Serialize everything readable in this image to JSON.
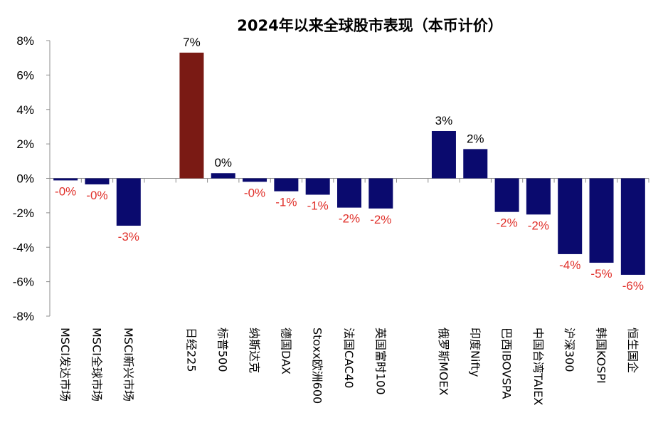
{
  "chart_data": {
    "type": "bar",
    "title": "2024年以来全球股市表现（本币计价）",
    "xlabel": "",
    "ylabel": "",
    "ylim": [
      -8,
      8
    ],
    "yticks": [
      8,
      6,
      4,
      2,
      0,
      -2,
      -4,
      -6,
      -8
    ],
    "ytick_labels": [
      "8%",
      "6%",
      "4%",
      "2%",
      "0%",
      "-2%",
      "-4%",
      "-6%",
      "-8%"
    ],
    "grid": false,
    "legend": "none",
    "colors": {
      "bar_default": "#0a0a6e",
      "bar_highlight": "#7a1a14",
      "label_positive": "#000000",
      "label_negative": "#e0302a",
      "axis": "#8c8c8c"
    },
    "categories": [
      "MSCI发达市场",
      "MSCI全球市场",
      "MSCI新兴市场",
      "",
      "日经225",
      "标普500",
      "纳斯达克",
      "德国DAX",
      "Stoxx欧洲600",
      "法国CAC40",
      "英国富时100",
      "",
      "俄罗斯MOEX",
      "印度Nifty",
      "巴西IBOVSPA",
      "中国台湾TAIEX",
      "沪深300",
      "韩国KOSPI",
      "恒生国企"
    ],
    "values": [
      -0.12,
      -0.35,
      -2.75,
      null,
      7.3,
      0.3,
      -0.2,
      -0.75,
      -0.95,
      -1.7,
      -1.75,
      null,
      2.75,
      1.7,
      -1.95,
      -2.1,
      -4.4,
      -4.9,
      -5.6
    ],
    "labels": [
      "-0%",
      "-0%",
      "-3%",
      "",
      "7%",
      "0%",
      "-0%",
      "-1%",
      "-1%",
      "-2%",
      "-2%",
      "",
      "3%",
      "2%",
      "-2%",
      "-2%",
      "-4%",
      "-5%",
      "-6%"
    ],
    "highlight_index": 4
  }
}
